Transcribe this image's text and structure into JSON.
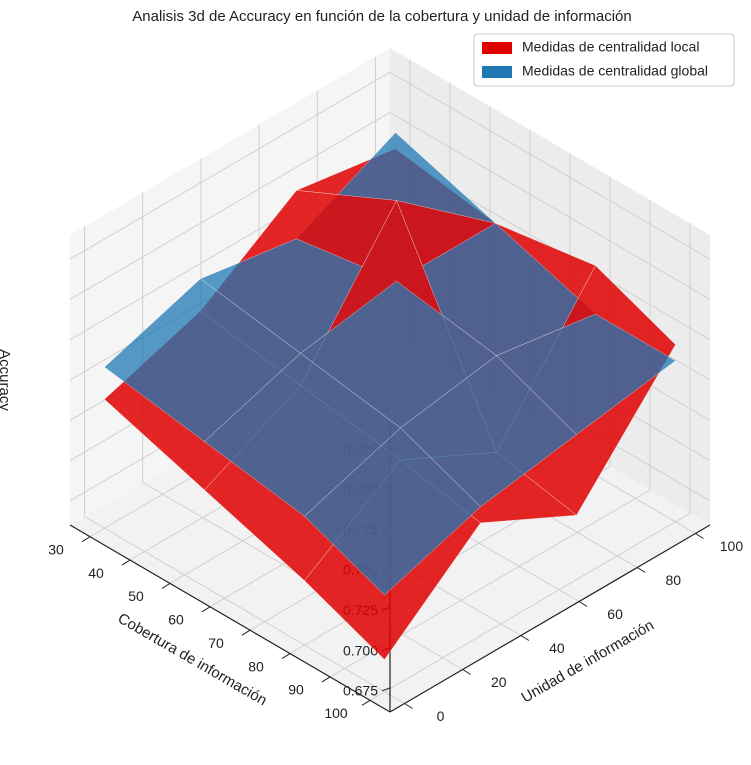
{
  "chart_data": {
    "type": "surface3d",
    "title": "Analisis 3d de Accuracy en función de la cobertura y unidad de información",
    "x_label": "Unidad de información",
    "y_label": "Cobertura de información",
    "z_label": "Accuracy",
    "x": [
      0,
      33,
      66,
      100
    ],
    "y": [
      30,
      55,
      80,
      100
    ],
    "xlim": [
      -5,
      105
    ],
    "xticks": [
      0,
      20,
      40,
      60,
      80,
      100
    ],
    "ylim": [
      25,
      105
    ],
    "yticks": [
      30,
      40,
      50,
      60,
      70,
      80,
      90,
      100
    ],
    "zlim": [
      0.66,
      0.84
    ],
    "zticks": [
      0.675,
      {
        "value": 0.7,
        "label": "0.700"
      },
      0.725,
      {
        "value": 0.75,
        "label": "0.750"
      },
      0.775,
      {
        "value": 0.8,
        "label": "0.800"
      },
      0.825
    ],
    "legend": "upper right",
    "series": [
      {
        "name": "Medidas de centralidad local",
        "color": "#e00000",
        "values": [
          [
            0.74,
            0.76,
            0.8,
            0.79
          ],
          [
            0.72,
            0.75,
            0.83,
            0.78
          ],
          [
            0.7,
            0.74,
            0.71,
            0.79
          ],
          [
            0.68,
            0.73,
            0.7,
            0.77
          ]
        ]
      },
      {
        "name": "Medidas de centralidad global",
        "color": "#1f77b4",
        "values": [
          [
            0.76,
            0.78,
            0.77,
            0.8
          ],
          [
            0.75,
            0.77,
            0.78,
            0.78
          ],
          [
            0.74,
            0.76,
            0.77,
            0.76
          ],
          [
            0.72,
            0.74,
            0.75,
            0.76
          ]
        ]
      }
    ]
  }
}
